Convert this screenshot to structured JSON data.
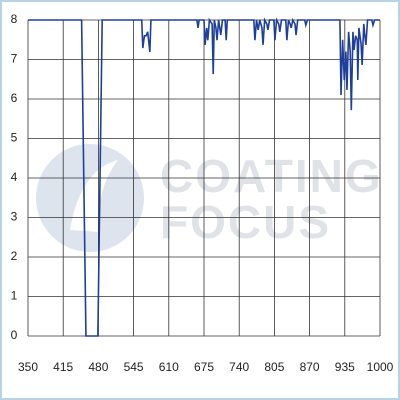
{
  "chart_data": {
    "type": "line",
    "x": [
      350,
      449,
      453,
      457,
      479,
      483,
      487,
      560,
      562,
      565,
      568,
      571,
      575,
      577,
      662,
      664,
      666,
      675,
      677,
      680,
      682,
      685,
      690,
      692,
      694,
      697,
      699,
      702,
      706,
      709,
      714,
      716,
      718,
      767,
      769,
      772,
      775,
      778,
      782,
      784,
      787,
      791,
      793,
      796,
      804,
      806,
      809,
      813,
      815,
      818,
      826,
      828,
      831,
      834,
      836,
      839,
      843,
      845,
      848,
      861,
      863,
      866,
      926,
      928,
      931,
      934,
      937,
      939,
      942,
      945,
      947,
      950,
      952,
      955,
      958,
      959,
      961,
      965,
      967,
      970,
      972,
      974,
      977,
      985,
      987,
      990,
      1000
    ],
    "series": [
      {
        "color": "#1f3f9a",
        "values": [
          8,
          8,
          4,
          0,
          0,
          4,
          8,
          8,
          7.29,
          7.6,
          7.6,
          7.7,
          7.19,
          8,
          8,
          7.8,
          8,
          8,
          7.37,
          7.8,
          7.49,
          8,
          7.9,
          6.63,
          8,
          7.8,
          7.49,
          8,
          7.62,
          8,
          8,
          7.49,
          8,
          8,
          7.49,
          8,
          7.75,
          8,
          7.8,
          7.37,
          8,
          7.9,
          7.75,
          8,
          8,
          7.49,
          8,
          7.9,
          7.7,
          8,
          8,
          7.49,
          8,
          7.9,
          7.8,
          8,
          7.9,
          7.62,
          8,
          8,
          7.87,
          8,
          8,
          6.1,
          7.5,
          6.48,
          7.2,
          6.23,
          7.7,
          7.2,
          5.72,
          7.7,
          7.24,
          7.6,
          7.5,
          6.48,
          7.8,
          7.4,
          6.86,
          7.9,
          7.6,
          7.37,
          8,
          8,
          7.87,
          8,
          8
        ]
      }
    ],
    "xlim": [
      350,
      1000
    ],
    "ylim": [
      0,
      8
    ],
    "xticks": [
      350,
      415,
      480,
      545,
      610,
      675,
      740,
      805,
      870,
      935,
      1000
    ],
    "yticks": [
      0,
      1,
      2,
      3,
      4,
      5,
      6,
      7,
      8
    ],
    "grid": true
  },
  "watermark": {
    "line1": "COATING",
    "line2": "FOCUS"
  }
}
